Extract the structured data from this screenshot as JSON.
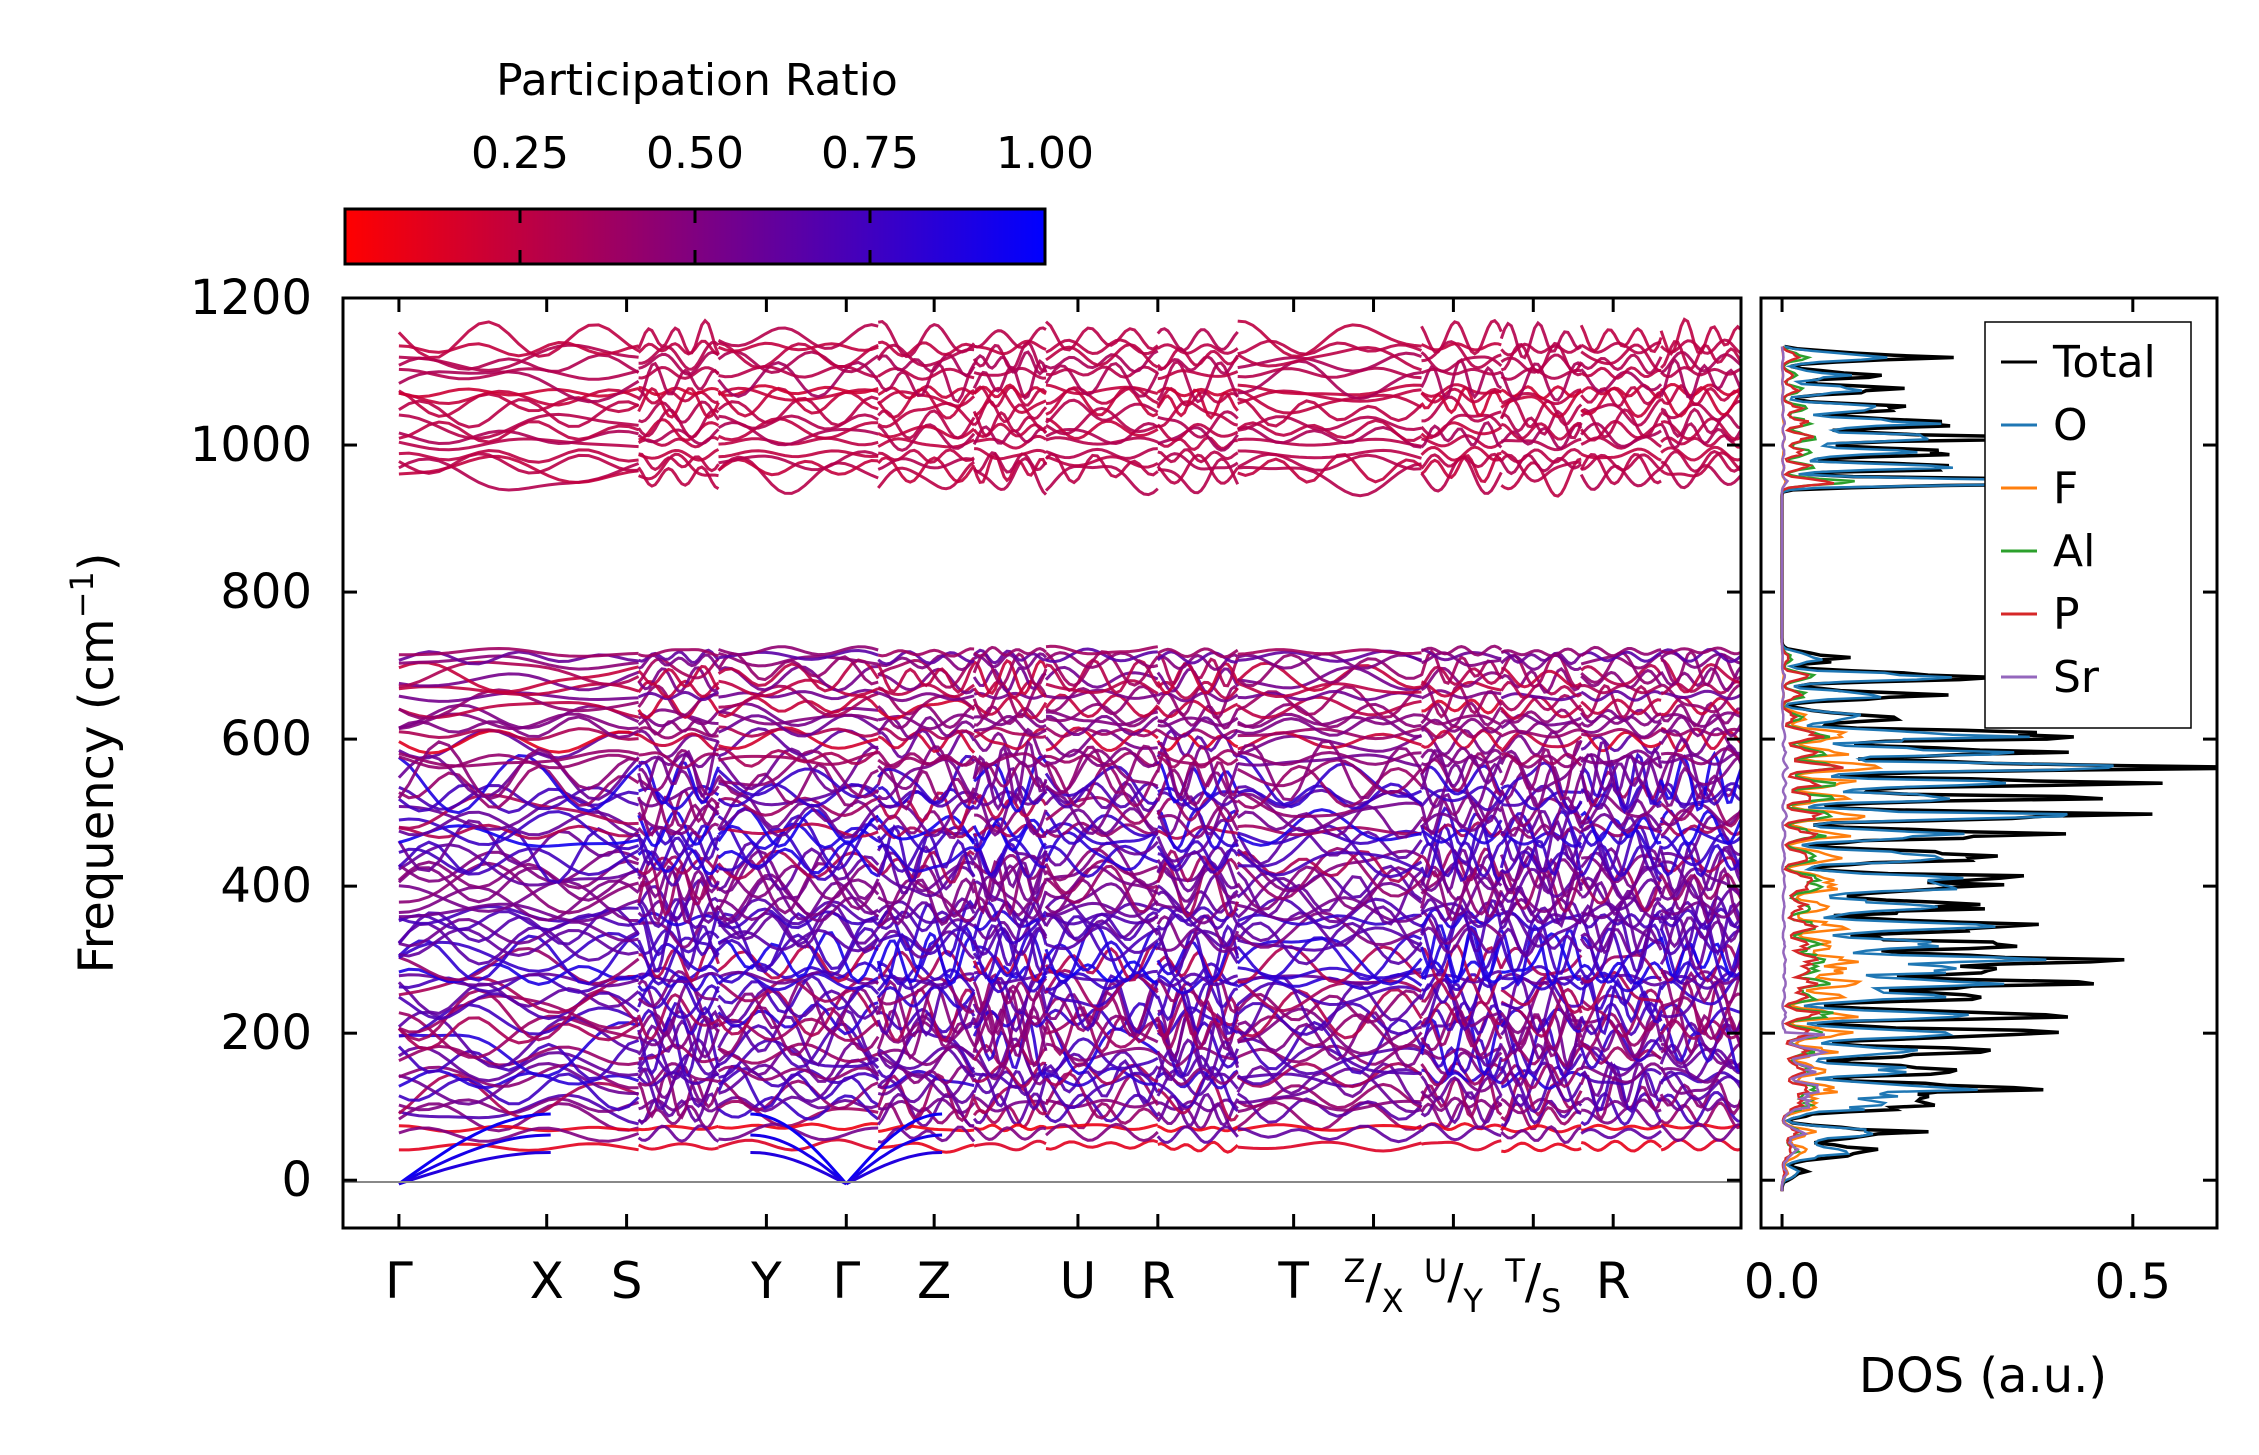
{
  "chart_data": [
    {
      "type": "line",
      "subtype": "phonon-band-structure",
      "ylabel_main": "Frequency (cm",
      "ylabel_sup": "−1",
      "ylabel_close": ")",
      "ylim": [
        -65,
        1200
      ],
      "yticks": [
        0,
        200,
        400,
        600,
        800,
        1000,
        1200
      ],
      "ytick_labels": [
        "0",
        "200",
        "400",
        "600",
        "800",
        "1000",
        "1200"
      ],
      "segments": [
        {
          "from": 0.0,
          "to": 3.0
        },
        {
          "from": 3.0,
          "to": 4.0
        },
        {
          "from": 4.0,
          "to": 6.0
        },
        {
          "from": 6.0,
          "to": 7.2
        },
        {
          "from": 7.2,
          "to": 8.1
        },
        {
          "from": 8.1,
          "to": 9.5
        },
        {
          "from": 9.5,
          "to": 10.5
        },
        {
          "from": 10.5,
          "to": 12.8
        },
        {
          "from": 12.8,
          "to": 13.8
        },
        {
          "from": 13.8,
          "to": 14.8
        },
        {
          "from": 14.8,
          "to": 15.8
        },
        {
          "from": 15.8,
          "to": 16.8
        }
      ],
      "xrange": [
        -0.7,
        16.8
      ],
      "high_points": [
        {
          "x": 0.0,
          "label": "Γ"
        },
        {
          "x": 1.85,
          "label": "X"
        },
        {
          "x": 2.85,
          "label": "S"
        },
        {
          "x": 4.6,
          "label": "Y"
        },
        {
          "x": 5.6,
          "label": "Γ"
        },
        {
          "x": 6.7,
          "label": "Z"
        },
        {
          "x": 8.5,
          "label": "U"
        },
        {
          "x": 9.5,
          "label": "R"
        },
        {
          "x": 11.2,
          "label": "T"
        },
        {
          "x": 12.2,
          "label": "Z",
          "sub": "X",
          "composite": true
        },
        {
          "x": 13.2,
          "label": "U",
          "sub": "Y",
          "composite": true
        },
        {
          "x": 14.2,
          "label": "T",
          "sub": "S",
          "composite": true
        },
        {
          "x": 15.2,
          "label": "R"
        }
      ],
      "band_count_high": 18,
      "band_count_mid": 16,
      "band_count_low": 58,
      "colorbar": {
        "label": "Participation Ratio",
        "range": [
          0.0,
          1.0
        ],
        "ticks": [
          0.25,
          0.5,
          0.75,
          1.0
        ],
        "tick_labels": [
          "0.25",
          "0.50",
          "0.75",
          "1.00"
        ],
        "color_low": "#ff0000",
        "color_mid": "#800080",
        "color_high": "#0000ff"
      }
    },
    {
      "type": "line",
      "subtype": "density-of-states",
      "xlabel": "DOS (a.u.)",
      "xlim": [
        -0.03,
        0.62
      ],
      "xticks": [
        0.0,
        0.5
      ],
      "xtick_labels": [
        "0.0",
        "0.5"
      ],
      "ylim": [
        -65,
        1200
      ],
      "legend_position": "top-right",
      "series": [
        {
          "name": "Total",
          "color": "#000000",
          "scale": 1.0
        },
        {
          "name": "O",
          "color": "#1f77b4",
          "scale": 0.72
        },
        {
          "name": "F",
          "color": "#ff7f0e",
          "scale": 0.2
        },
        {
          "name": "Al",
          "color": "#2ca02c",
          "scale": 0.16
        },
        {
          "name": "P",
          "color": "#d62728",
          "scale": 0.12
        },
        {
          "name": "Sr",
          "color": "#9467bd",
          "scale": 0.08
        }
      ],
      "peaks": [
        {
          "y": 10,
          "h": 0.03,
          "w": 6
        },
        {
          "y": 40,
          "h": 0.12,
          "w": 8
        },
        {
          "y": 65,
          "h": 0.17,
          "w": 6
        },
        {
          "y": 105,
          "h": 0.22,
          "w": 9
        },
        {
          "y": 125,
          "h": 0.3,
          "w": 6
        },
        {
          "y": 150,
          "h": 0.25,
          "w": 7
        },
        {
          "y": 175,
          "h": 0.28,
          "w": 6
        },
        {
          "y": 200,
          "h": 0.35,
          "w": 6
        },
        {
          "y": 225,
          "h": 0.44,
          "w": 5
        },
        {
          "y": 250,
          "h": 0.3,
          "w": 6
        },
        {
          "y": 268,
          "h": 0.41,
          "w": 5
        },
        {
          "y": 285,
          "h": 0.36,
          "w": 5
        },
        {
          "y": 300,
          "h": 0.42,
          "w": 5
        },
        {
          "y": 320,
          "h": 0.3,
          "w": 7
        },
        {
          "y": 345,
          "h": 0.35,
          "w": 6
        },
        {
          "y": 372,
          "h": 0.25,
          "w": 8
        },
        {
          "y": 398,
          "h": 0.3,
          "w": 6
        },
        {
          "y": 412,
          "h": 0.29,
          "w": 5
        },
        {
          "y": 440,
          "h": 0.32,
          "w": 7
        },
        {
          "y": 470,
          "h": 0.35,
          "w": 6
        },
        {
          "y": 496,
          "h": 0.5,
          "w": 5
        },
        {
          "y": 520,
          "h": 0.38,
          "w": 5
        },
        {
          "y": 540,
          "h": 0.45,
          "w": 5
        },
        {
          "y": 562,
          "h": 0.6,
          "w": 5
        },
        {
          "y": 582,
          "h": 0.4,
          "w": 5
        },
        {
          "y": 605,
          "h": 0.45,
          "w": 6
        },
        {
          "y": 630,
          "h": 0.15,
          "w": 6
        },
        {
          "y": 660,
          "h": 0.22,
          "w": 5
        },
        {
          "y": 685,
          "h": 0.3,
          "w": 5
        },
        {
          "y": 710,
          "h": 0.08,
          "w": 6
        },
        {
          "y": 950,
          "h": 0.6,
          "w": 4
        },
        {
          "y": 970,
          "h": 0.3,
          "w": 4
        },
        {
          "y": 990,
          "h": 0.25,
          "w": 5
        },
        {
          "y": 1010,
          "h": 0.32,
          "w": 5
        },
        {
          "y": 1030,
          "h": 0.28,
          "w": 5
        },
        {
          "y": 1050,
          "h": 0.2,
          "w": 5
        },
        {
          "y": 1075,
          "h": 0.16,
          "w": 5
        },
        {
          "y": 1095,
          "h": 0.12,
          "w": 5
        },
        {
          "y": 1120,
          "h": 0.2,
          "w": 5
        }
      ]
    }
  ]
}
